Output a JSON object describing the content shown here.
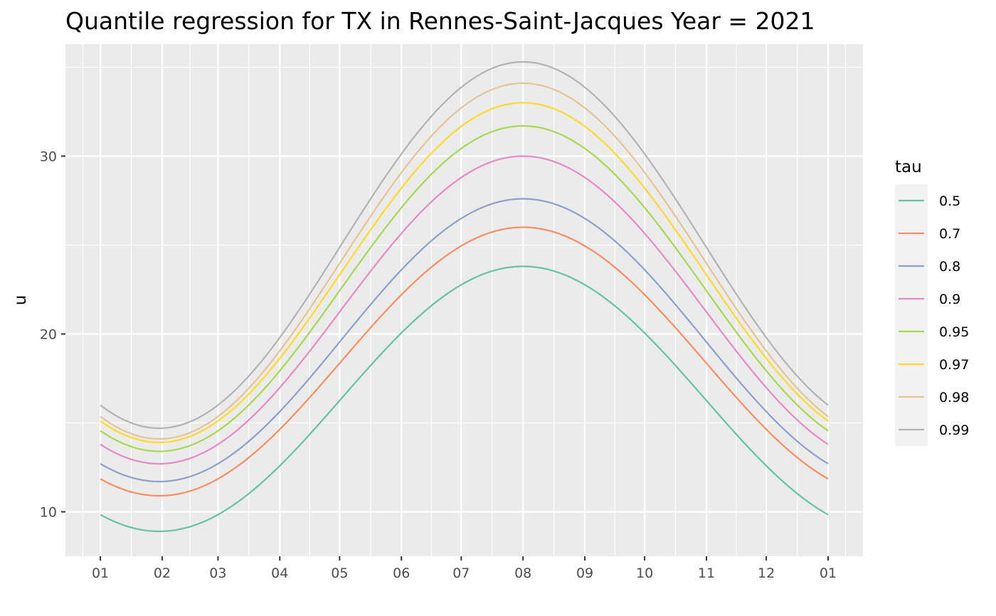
{
  "chart_data": {
    "type": "line",
    "title": "Quantile regression for TX in Rennes-Saint-Jacques Year = 2021",
    "xlabel": "",
    "ylabel": "u",
    "x_tick_labels": [
      "01",
      "02",
      "03",
      "04",
      "05",
      "06",
      "07",
      "08",
      "09",
      "10",
      "11",
      "12",
      "01"
    ],
    "x_tick_days": [
      1,
      32,
      60,
      91,
      121,
      152,
      182,
      213,
      244,
      274,
      305,
      335,
      366
    ],
    "xlim": [
      -16.5,
      383.5
    ],
    "y_ticks": [
      10,
      20,
      30
    ],
    "ylim": [
      7.5,
      36.3
    ],
    "grid": true,
    "legend_title": "tau",
    "legend_position": "right",
    "series_model": "mean + amplitude * cos(2*pi*(day - peak_day)/365)",
    "series": [
      {
        "name": "0.5",
        "color": "#66c2a5",
        "mean": 16.35,
        "amplitude": 7.45,
        "peak_day": 213
      },
      {
        "name": "0.7",
        "color": "#fc8d62",
        "mean": 18.45,
        "amplitude": 7.55,
        "peak_day": 213
      },
      {
        "name": "0.8",
        "color": "#8da0cb",
        "mean": 19.65,
        "amplitude": 7.95,
        "peak_day": 213
      },
      {
        "name": "0.9",
        "color": "#e78ac3",
        "mean": 21.35,
        "amplitude": 8.65,
        "peak_day": 213
      },
      {
        "name": "0.95",
        "color": "#a6d854",
        "mean": 22.55,
        "amplitude": 9.15,
        "peak_day": 213
      },
      {
        "name": "0.97",
        "color": "#ffd92f",
        "mean": 23.45,
        "amplitude": 9.55,
        "peak_day": 213
      },
      {
        "name": "0.98",
        "color": "#e5c494",
        "mean": 24.1,
        "amplitude": 10.0,
        "peak_day": 213
      },
      {
        "name": "0.99",
        "color": "#b3b3b3",
        "mean": 25.0,
        "amplitude": 10.3,
        "peak_day": 213
      }
    ]
  }
}
